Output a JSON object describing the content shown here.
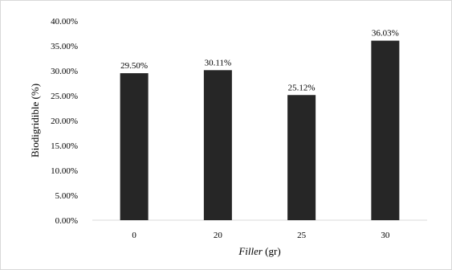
{
  "chart_data": {
    "type": "bar",
    "categories": [
      "0",
      "20",
      "25",
      "30"
    ],
    "values": [
      29.5,
      30.11,
      25.12,
      36.03
    ],
    "data_labels": [
      "29.50%",
      "30.11%",
      "25.12%",
      "36.03%"
    ],
    "xlabel_italic": "Filler",
    "xlabel_rest": " (gr)",
    "ylabel": "Biodigridible (%)",
    "ylim": [
      0,
      40
    ],
    "yticks": [
      0,
      5,
      10,
      15,
      20,
      25,
      30,
      35,
      40
    ],
    "ytick_labels": [
      "0.00%",
      "5.00%",
      "10.00%",
      "15.00%",
      "20.00%",
      "25.00%",
      "30.00%",
      "35.00%",
      "40.00%"
    ],
    "bar_color": "#262626",
    "grid": false,
    "legend": "none"
  }
}
